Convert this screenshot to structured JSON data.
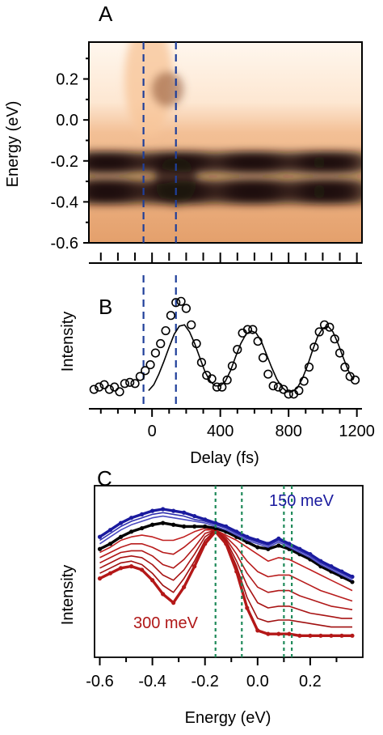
{
  "figure": {
    "panel_a_label": "A",
    "panel_b_label": "B",
    "panel_c_label": "C"
  },
  "chart_data": [
    {
      "panel": "A",
      "type": "heatmap",
      "title": "",
      "ylabel": "Energy (eV)",
      "xlabel": "",
      "ylim": [
        -0.6,
        0.38
      ],
      "xlim": [
        -370,
        1230
      ],
      "yticks": [
        "0.2",
        "0.0",
        "-0.2",
        "-0.4",
        "-0.6"
      ],
      "ytick_values": [
        0.2,
        0.0,
        -0.2,
        -0.4,
        -0.6
      ],
      "colormap": [
        "#fff6ec",
        "#f7c69a",
        "#d98e57",
        "#8a5132",
        "#1e120b"
      ],
      "bands": [
        {
          "energy": -0.2,
          "description": "dark band oscillating with delay"
        },
        {
          "energy": -0.35,
          "description": "dark band oscillating with delay"
        }
      ],
      "dashed_lines_x": [
        -50,
        140
      ],
      "dashed_color": "#1f3f9a"
    },
    {
      "panel": "B",
      "type": "scatter",
      "title": "",
      "ylabel": "Intensity",
      "xlabel": "Delay (fs)",
      "xlim": [
        -370,
        1230
      ],
      "ylim": [
        0,
        1
      ],
      "xticks": [
        "0",
        "400",
        "800",
        "1200"
      ],
      "xtick_values": [
        0,
        400,
        800,
        1200
      ],
      "dashed_lines_x": [
        -50,
        140
      ],
      "dashed_color": "#1f3f9a",
      "series": [
        {
          "kind": "markers",
          "x": [
            -340,
            -310,
            -280,
            -250,
            -220,
            -190,
            -160,
            -130,
            -100,
            -70,
            -40,
            -10,
            20,
            50,
            80,
            110,
            140,
            170,
            200,
            230,
            260,
            290,
            320,
            350,
            380,
            410,
            440,
            470,
            500,
            530,
            560,
            590,
            620,
            650,
            680,
            710,
            740,
            770,
            800,
            830,
            860,
            890,
            920,
            950,
            980,
            1010,
            1040,
            1070,
            1100,
            1130,
            1160,
            1190
          ],
          "y": [
            0.11,
            0.13,
            0.15,
            0.11,
            0.13,
            0.09,
            0.16,
            0.17,
            0.16,
            0.22,
            0.27,
            0.32,
            0.42,
            0.5,
            0.61,
            0.74,
            0.85,
            0.86,
            0.8,
            0.66,
            0.5,
            0.34,
            0.23,
            0.2,
            0.13,
            0.13,
            0.19,
            0.31,
            0.45,
            0.59,
            0.62,
            0.62,
            0.52,
            0.38,
            0.24,
            0.14,
            0.13,
            0.11,
            0.07,
            0.07,
            0.1,
            0.18,
            0.3,
            0.47,
            0.6,
            0.66,
            0.64,
            0.54,
            0.42,
            0.3,
            0.22,
            0.19
          ]
        },
        {
          "kind": "line",
          "x": [
            -20,
            10,
            40,
            70,
            100,
            130,
            160,
            190,
            220,
            250,
            280,
            310,
            340,
            370,
            400,
            430,
            460,
            490,
            520,
            550,
            580,
            610,
            640,
            670,
            700,
            730,
            760,
            790,
            820,
            850,
            880,
            910,
            940,
            970,
            1000,
            1030,
            1060,
            1090,
            1120,
            1150,
            1180
          ],
          "y": [
            0.1,
            0.15,
            0.24,
            0.35,
            0.47,
            0.58,
            0.65,
            0.66,
            0.6,
            0.5,
            0.38,
            0.26,
            0.18,
            0.14,
            0.14,
            0.18,
            0.27,
            0.39,
            0.5,
            0.58,
            0.61,
            0.59,
            0.52,
            0.41,
            0.3,
            0.2,
            0.13,
            0.09,
            0.09,
            0.12,
            0.2,
            0.31,
            0.44,
            0.56,
            0.63,
            0.65,
            0.6,
            0.5,
            0.38,
            0.27,
            0.19
          ]
        }
      ]
    },
    {
      "panel": "C",
      "type": "line",
      "title": "",
      "ylabel": "Intensity",
      "xlabel": "Energy (eV)",
      "xlim": [
        -0.62,
        0.4
      ],
      "ylim": [
        0,
        1
      ],
      "xticks": [
        "-0.6",
        "-0.4",
        "-0.2",
        "0.0",
        "0.2"
      ],
      "xtick_values": [
        -0.6,
        -0.4,
        -0.2,
        0.0,
        0.2
      ],
      "annotations": [
        {
          "text": "150 meV",
          "color": "#1a1a9e"
        },
        {
          "text": "300 meV",
          "color": "#b01818"
        }
      ],
      "dotted_lines_x": [
        -0.16,
        -0.06,
        0.1,
        0.13
      ],
      "dotted_color": "#1f8a5a",
      "x": [
        -0.6,
        -0.56,
        -0.52,
        -0.48,
        -0.44,
        -0.4,
        -0.36,
        -0.32,
        -0.28,
        -0.24,
        -0.2,
        -0.16,
        -0.12,
        -0.08,
        -0.04,
        0.0,
        0.04,
        0.08,
        0.12,
        0.16,
        0.2,
        0.24,
        0.28,
        0.32,
        0.36
      ],
      "series": [
        {
          "group": "blue",
          "color": "#1a1a9e",
          "values": [
            0.62,
            0.66,
            0.7,
            0.73,
            0.75,
            0.77,
            0.78,
            0.77,
            0.76,
            0.74,
            0.72,
            0.7,
            0.68,
            0.65,
            0.62,
            0.6,
            0.58,
            0.61,
            0.58,
            0.55,
            0.52,
            0.48,
            0.45,
            0.42,
            0.39
          ]
        },
        {
          "group": "blue",
          "color": "#3030b0",
          "values": [
            0.6,
            0.64,
            0.68,
            0.71,
            0.73,
            0.75,
            0.76,
            0.75,
            0.74,
            0.72,
            0.71,
            0.69,
            0.67,
            0.64,
            0.61,
            0.59,
            0.57,
            0.6,
            0.57,
            0.54,
            0.51,
            0.47,
            0.44,
            0.41,
            0.38
          ]
        },
        {
          "group": "blue",
          "color": "#4a4ac0",
          "values": [
            0.58,
            0.62,
            0.66,
            0.69,
            0.71,
            0.73,
            0.74,
            0.73,
            0.72,
            0.71,
            0.7,
            0.68,
            0.66,
            0.63,
            0.6,
            0.58,
            0.56,
            0.59,
            0.56,
            0.53,
            0.5,
            0.46,
            0.43,
            0.4,
            0.37
          ]
        },
        {
          "group": "black",
          "color": "#000000",
          "values": [
            0.55,
            0.58,
            0.62,
            0.65,
            0.67,
            0.69,
            0.7,
            0.69,
            0.68,
            0.68,
            0.68,
            0.67,
            0.65,
            0.62,
            0.59,
            0.56,
            0.55,
            0.57,
            0.55,
            0.52,
            0.49,
            0.45,
            0.42,
            0.39,
            0.36
          ]
        },
        {
          "group": "red",
          "color": "#c02020",
          "values": [
            0.53,
            0.56,
            0.6,
            0.62,
            0.63,
            0.62,
            0.6,
            0.6,
            0.62,
            0.65,
            0.67,
            0.66,
            0.63,
            0.6,
            0.56,
            0.52,
            0.48,
            0.5,
            0.49,
            0.46,
            0.43,
            0.4,
            0.37,
            0.34,
            0.31
          ]
        },
        {
          "group": "red",
          "color": "#b81c1c",
          "values": [
            0.5,
            0.53,
            0.56,
            0.58,
            0.58,
            0.56,
            0.53,
            0.52,
            0.56,
            0.61,
            0.66,
            0.66,
            0.62,
            0.56,
            0.48,
            0.42,
            0.39,
            0.4,
            0.4,
            0.37,
            0.34,
            0.31,
            0.29,
            0.27,
            0.25
          ]
        },
        {
          "group": "red",
          "color": "#b01818",
          "values": [
            0.47,
            0.5,
            0.53,
            0.54,
            0.54,
            0.51,
            0.46,
            0.44,
            0.49,
            0.56,
            0.64,
            0.66,
            0.61,
            0.52,
            0.41,
            0.33,
            0.3,
            0.31,
            0.31,
            0.28,
            0.26,
            0.24,
            0.22,
            0.21,
            0.2
          ]
        },
        {
          "group": "red",
          "color": "#a81414",
          "values": [
            0.44,
            0.47,
            0.5,
            0.51,
            0.5,
            0.46,
            0.4,
            0.37,
            0.43,
            0.52,
            0.62,
            0.66,
            0.6,
            0.48,
            0.34,
            0.24,
            0.21,
            0.22,
            0.22,
            0.2,
            0.18,
            0.17,
            0.16,
            0.15,
            0.15
          ]
        },
        {
          "group": "red",
          "color": "#a01010",
          "values": [
            0.41,
            0.44,
            0.47,
            0.48,
            0.46,
            0.41,
            0.34,
            0.3,
            0.38,
            0.48,
            0.6,
            0.66,
            0.59,
            0.45,
            0.27,
            0.15,
            0.13,
            0.14,
            0.14,
            0.13,
            0.12,
            0.11,
            0.1,
            0.1,
            0.1
          ]
        },
        {
          "group": "red",
          "color": "#b41818",
          "values": [
            0.38,
            0.41,
            0.44,
            0.45,
            0.43,
            0.37,
            0.29,
            0.24,
            0.33,
            0.45,
            0.58,
            0.65,
            0.58,
            0.42,
            0.21,
            0.08,
            0.06,
            0.06,
            0.06,
            0.05,
            0.05,
            0.05,
            0.05,
            0.05,
            0.05
          ]
        }
      ]
    }
  ]
}
